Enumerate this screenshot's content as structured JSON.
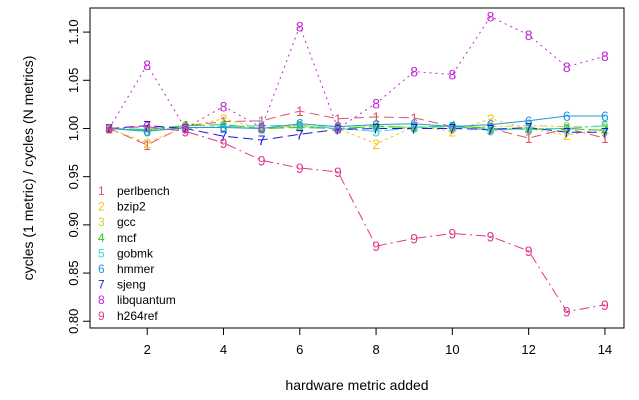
{
  "chart_data": {
    "type": "line",
    "title": "",
    "xlabel": "hardware metric added",
    "ylabel": "cycles (1 metric) / cycles (N metrics)",
    "xlim": [
      0.5,
      14.5
    ],
    "ylim": [
      0.793,
      1.125
    ],
    "x_ticks": [
      2,
      4,
      6,
      8,
      10,
      12,
      14
    ],
    "y_ticks": [
      0.8,
      0.85,
      0.9,
      0.95,
      1.0,
      1.05,
      1.1
    ],
    "y_tick_labels": [
      "0.80",
      "0.85",
      "0.90",
      "0.95",
      "1.00",
      "1.05",
      "1.10"
    ],
    "legend_position": "bottom-left",
    "grid": false,
    "x": [
      1,
      2,
      3,
      4,
      5,
      6,
      7,
      8,
      9,
      10,
      11,
      12,
      13,
      14
    ],
    "series": [
      {
        "name": "perlbench",
        "symbol": "1",
        "color": "#DF536B",
        "dash": "10,5",
        "values": [
          1.0,
          0.983,
          1.003,
          1.007,
          1.008,
          1.018,
          1.01,
          1.012,
          1.011,
          1.002,
          1.0,
          0.99,
          1.0,
          0.99
        ]
      },
      {
        "name": "bzip2",
        "symbol": "2",
        "color": "#F5C710",
        "dash": "3,3",
        "values": [
          1.0,
          0.985,
          1.002,
          1.01,
          1.0,
          1.002,
          1.0,
          0.984,
          1.002,
          0.997,
          1.01,
          1.0,
          0.993,
          1.0
        ]
      },
      {
        "name": "gcc",
        "symbol": "3",
        "color": "#CBD12F",
        "dash": "3,3,8,3",
        "values": [
          1.0,
          0.998,
          1.001,
          1.002,
          1.0,
          1.003,
          1.002,
          1.003,
          1.001,
          1.0,
          1.002,
          1.003,
          1.002,
          1.002
        ]
      },
      {
        "name": "mcf",
        "symbol": "4",
        "color": "#29C71C",
        "dash": "16,4",
        "values": [
          1.0,
          0.999,
          1.003,
          1.004,
          1.0,
          1.001,
          1.0,
          1.002,
          1.001,
          1.003,
          1.0,
          0.999,
          1.0,
          0.998
        ]
      },
      {
        "name": "gobmk",
        "symbol": "5",
        "color": "#35D6D6",
        "dash": "14,3,3,3",
        "values": [
          1.0,
          0.998,
          1.0,
          1.002,
          1.003,
          1.003,
          1.0,
          0.997,
          1.001,
          1.002,
          0.998,
          1.0,
          1.0,
          1.003
        ]
      },
      {
        "name": "hmmer",
        "symbol": "6",
        "color": "#2297E6",
        "dash": "",
        "values": [
          1.0,
          0.997,
          1.001,
          1.001,
          1.0,
          1.005,
          1.002,
          1.004,
          1.005,
          1.002,
          1.004,
          1.008,
          1.013,
          1.013
        ]
      },
      {
        "name": "sjeng",
        "symbol": "7",
        "color": "#1A1ADF",
        "dash": "10,5",
        "values": [
          1.0,
          1.003,
          1.0,
          0.992,
          0.988,
          0.994,
          0.999,
          1.0,
          1.0,
          1.0,
          0.999,
          1.001,
          0.996,
          0.996
        ]
      },
      {
        "name": "libquantum",
        "symbol": "8",
        "color": "#C026D3",
        "dash": "2,4",
        "values": [
          1.0,
          1.066,
          1.0,
          1.023,
          1.001,
          1.106,
          1.0,
          1.026,
          1.059,
          1.056,
          1.116,
          1.097,
          1.064,
          1.075
        ]
      },
      {
        "name": "h264ref",
        "symbol": "9",
        "color": "#E3358E",
        "dash": "10,4,2,4",
        "values": [
          1.0,
          1.002,
          0.997,
          0.985,
          0.967,
          0.959,
          0.955,
          0.878,
          0.886,
          0.891,
          0.888,
          0.873,
          0.81,
          0.817
        ]
      }
    ]
  }
}
